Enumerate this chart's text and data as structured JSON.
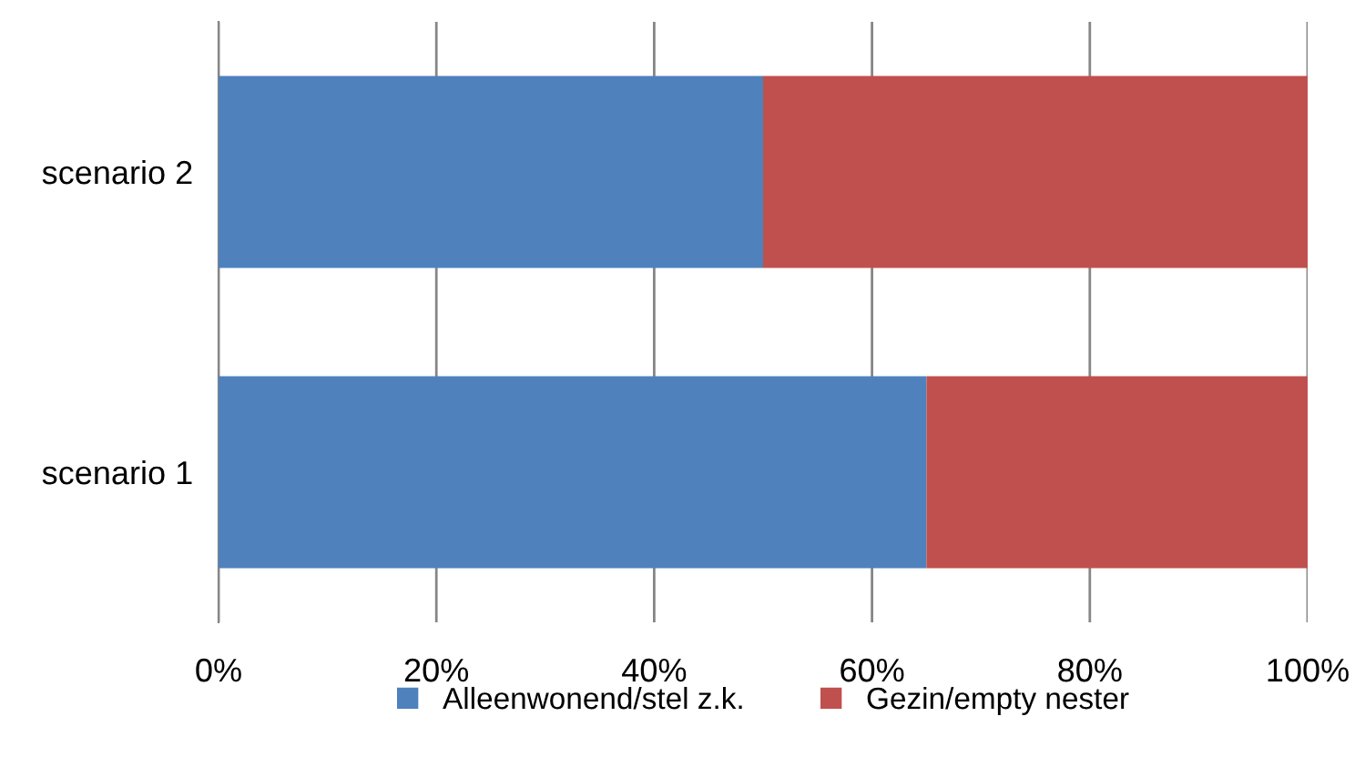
{
  "chart_data": {
    "type": "bar",
    "orientation": "horizontal",
    "stacked": true,
    "categories": [
      "scenario 2",
      "scenario 1"
    ],
    "series": [
      {
        "name": "Alleenwonend/stel z.k.",
        "color": "#4f81bd",
        "values": [
          50,
          65
        ]
      },
      {
        "name": "Gezin/empty nester",
        "color": "#c0504d",
        "values": [
          50,
          35
        ]
      }
    ],
    "xlim": [
      0,
      100
    ],
    "xticks": [
      {
        "value": 0,
        "label": "0%"
      },
      {
        "value": 20,
        "label": "20%"
      },
      {
        "value": 40,
        "label": "40%"
      },
      {
        "value": 60,
        "label": "60%"
      },
      {
        "value": 80,
        "label": "80%"
      },
      {
        "value": 100,
        "label": "100%"
      }
    ],
    "grid": "x",
    "legend": "bottom"
  }
}
